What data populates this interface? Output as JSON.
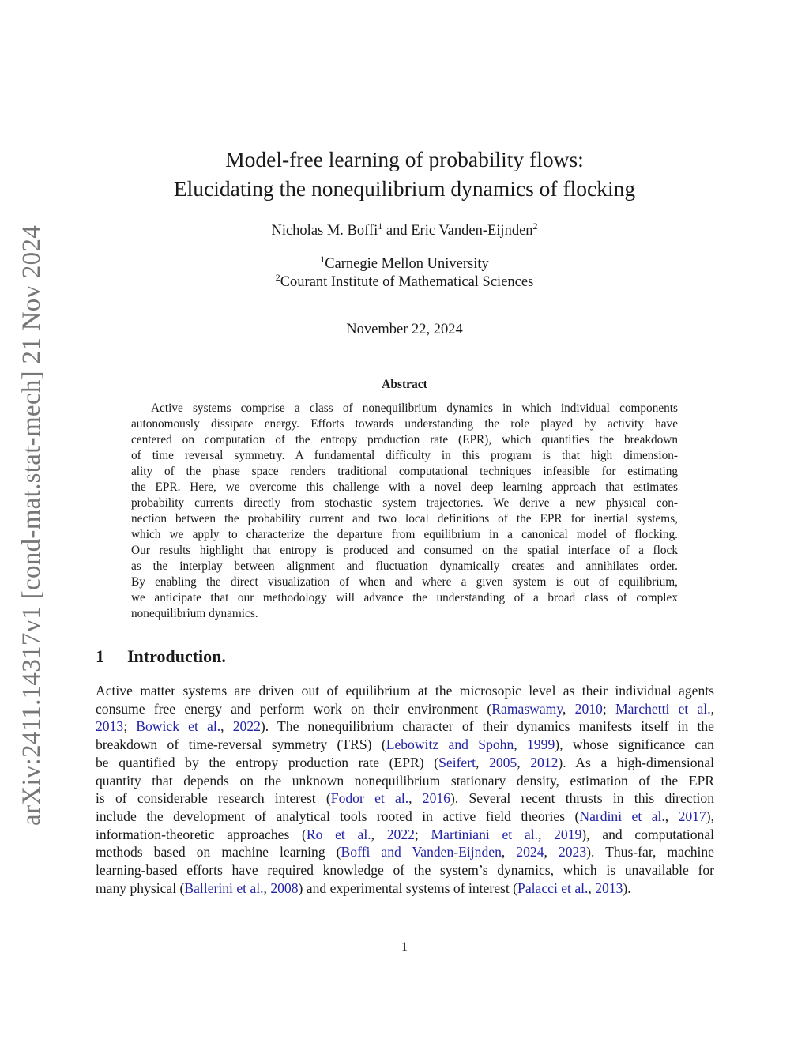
{
  "sidebar": {
    "arxiv_id": "arXiv:2411.14317v1  [cond-mat.stat-mech]  21 Nov 2024"
  },
  "title": {
    "line1": "Model-free learning of probability flows:",
    "line2": "Elucidating the nonequilibrium dynamics of flocking"
  },
  "authors": {
    "a1": "Nicholas M. Boffi",
    "a1_sup": "1",
    "and": " and Eric Vanden-Eijnden",
    "a2_sup": "2"
  },
  "affiliations": [
    {
      "sup": "1",
      "name": "Carnegie Mellon University"
    },
    {
      "sup": "2",
      "name": "Courant Institute of Mathematical Sciences"
    }
  ],
  "date": "November 22, 2024",
  "abstract": {
    "heading": "Abstract",
    "lines": [
      [
        {
          "t": "Active systems comprise a class of nonequilibrium dynamics in which individual components"
        }
      ],
      [
        {
          "t": "autonomously dissipate energy. Efforts towards understanding the role played by activity have"
        }
      ],
      [
        {
          "t": "centered on computation of the entropy production rate (EPR), which quantifies the breakdown"
        }
      ],
      [
        {
          "t": "of time reversal symmetry.  A fundamental difficulty in this program is that high dimension-"
        }
      ],
      [
        {
          "t": "ality of the phase space renders traditional computational techniques infeasible for estimating"
        }
      ],
      [
        {
          "t": "the EPR. Here, we overcome this challenge with a novel deep learning approach that estimates"
        }
      ],
      [
        {
          "t": "probability currents directly from stochastic system trajectories. We derive a new physical con-"
        }
      ],
      [
        {
          "t": "nection between the probability current and two local definitions of the EPR for inertial systems,"
        }
      ],
      [
        {
          "t": "which we apply to characterize the departure from equilibrium in a canonical model of flocking."
        }
      ],
      [
        {
          "t": "Our results highlight that entropy is produced and consumed on the spatial interface of a flock"
        }
      ],
      [
        {
          "t": "as the interplay between alignment and fluctuation dynamically creates and annihilates order."
        }
      ],
      [
        {
          "t": "By enabling the direct visualization of when and where a given system is out of equilibrium,"
        }
      ],
      [
        {
          "t": "we anticipate that our methodology will advance the understanding of a broad class of complex"
        }
      ],
      [
        {
          "t": "nonequilibrium dynamics."
        }
      ]
    ]
  },
  "section": {
    "number": "1",
    "title": "Introduction."
  },
  "intro": {
    "link_color": "#2323a6",
    "lines": [
      [
        {
          "t": "Active matter systems are driven out of equilibrium at the microsopic level as their individual agents"
        }
      ],
      [
        {
          "t": "consume free energy and perform work on their environment ("
        },
        {
          "t": "Ramaswamy",
          "link": true
        },
        {
          "t": ", "
        },
        {
          "t": "2010",
          "link": true
        },
        {
          "t": "; "
        },
        {
          "t": "Marchetti et al.",
          "link": true
        },
        {
          "t": ","
        }
      ],
      [
        {
          "t": "2013",
          "link": true
        },
        {
          "t": "; "
        },
        {
          "t": "Bowick et al.",
          "link": true
        },
        {
          "t": ", "
        },
        {
          "t": "2022",
          "link": true
        },
        {
          "t": ").  The nonequilibrium character of their dynamics manifests itself in the"
        }
      ],
      [
        {
          "t": "breakdown of time-reversal symmetry (TRS) ("
        },
        {
          "t": "Lebowitz and Spohn",
          "link": true
        },
        {
          "t": ", "
        },
        {
          "t": "1999",
          "link": true
        },
        {
          "t": "), whose significance can"
        }
      ],
      [
        {
          "t": "be quantified by the entropy production rate (EPR) ("
        },
        {
          "t": "Seifert",
          "link": true
        },
        {
          "t": ", "
        },
        {
          "t": "2005",
          "link": true
        },
        {
          "t": ", "
        },
        {
          "t": "2012",
          "link": true
        },
        {
          "t": ").  As a high-dimensional"
        }
      ],
      [
        {
          "t": "quantity that depends on the unknown nonequilibrium stationary density, estimation of the EPR"
        }
      ],
      [
        {
          "t": "is of considerable research interest ("
        },
        {
          "t": "Fodor et al.",
          "link": true
        },
        {
          "t": ", "
        },
        {
          "t": "2016",
          "link": true
        },
        {
          "t": ").  Several recent thrusts in this direction"
        }
      ],
      [
        {
          "t": "include the development of analytical tools rooted in active field theories ("
        },
        {
          "t": "Nardini et al.",
          "link": true
        },
        {
          "t": ", "
        },
        {
          "t": "2017",
          "link": true
        },
        {
          "t": "),"
        }
      ],
      [
        {
          "t": "information-theoretic approaches ("
        },
        {
          "t": "Ro et al.",
          "link": true
        },
        {
          "t": ", "
        },
        {
          "t": "2022",
          "link": true
        },
        {
          "t": "; "
        },
        {
          "t": "Martiniani et al.",
          "link": true
        },
        {
          "t": ", "
        },
        {
          "t": "2019",
          "link": true
        },
        {
          "t": "), and computational"
        }
      ],
      [
        {
          "t": "methods based on machine learning ("
        },
        {
          "t": "Boffi and Vanden-Eijnden",
          "link": true
        },
        {
          "t": ", "
        },
        {
          "t": "2024",
          "link": true
        },
        {
          "t": ", "
        },
        {
          "t": "2023",
          "link": true
        },
        {
          "t": ").  Thus-far, machine"
        }
      ],
      [
        {
          "t": "learning-based efforts have required knowledge of the system’s dynamics, which is unavailable for"
        }
      ],
      [
        {
          "t": "many physical ("
        },
        {
          "t": "Ballerini et al.",
          "link": true
        },
        {
          "t": ", "
        },
        {
          "t": "2008",
          "link": true
        },
        {
          "t": ") and experimental systems of interest ("
        },
        {
          "t": "Palacci et al.",
          "link": true
        },
        {
          "t": ", "
        },
        {
          "t": "2013",
          "link": true
        },
        {
          "t": ")."
        }
      ]
    ]
  },
  "page_number": "1"
}
